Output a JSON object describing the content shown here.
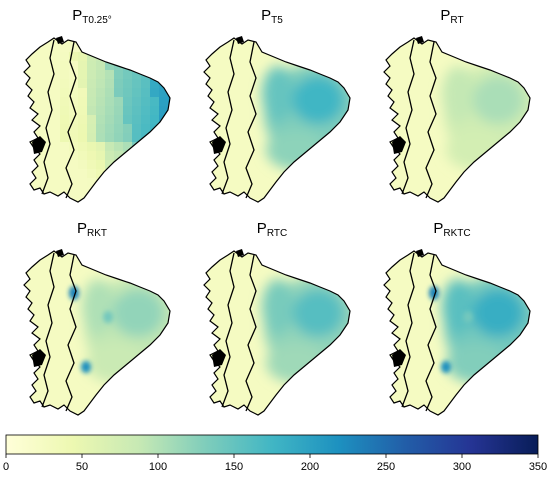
{
  "panels": [
    {
      "base": "P",
      "sub": "T0.25°",
      "product": "T0.25°",
      "pattern": "blocky"
    },
    {
      "base": "P",
      "sub": "T5",
      "product": "T5",
      "pattern": "smooth"
    },
    {
      "base": "P",
      "sub": "RT",
      "product": "RT",
      "pattern": "light"
    },
    {
      "base": "P",
      "sub": "RKT",
      "product": "RKT",
      "pattern": "mixed"
    },
    {
      "base": "P",
      "sub": "RTC",
      "product": "RTC",
      "pattern": "medium"
    },
    {
      "base": "P",
      "sub": "RKTC",
      "product": "RKTC",
      "pattern": "strong"
    }
  ],
  "colorbar": {
    "min": 0,
    "max": 350,
    "ticks": [
      {
        "value": 0,
        "label": "0"
      },
      {
        "value": 50,
        "label": "50"
      },
      {
        "value": 100,
        "label": "100"
      },
      {
        "value": 150,
        "label": "150"
      },
      {
        "value": 200,
        "label": "200"
      },
      {
        "value": 250,
        "label": "250"
      },
      {
        "value": 300,
        "label": "300"
      },
      {
        "value": 350,
        "label": "350"
      }
    ],
    "colors": [
      "#ffffd9",
      "#edf8b1",
      "#c7e9b4",
      "#7fcdbb",
      "#41b6c4",
      "#1d91c0",
      "#225ea8",
      "#253494",
      "#081d58"
    ]
  }
}
